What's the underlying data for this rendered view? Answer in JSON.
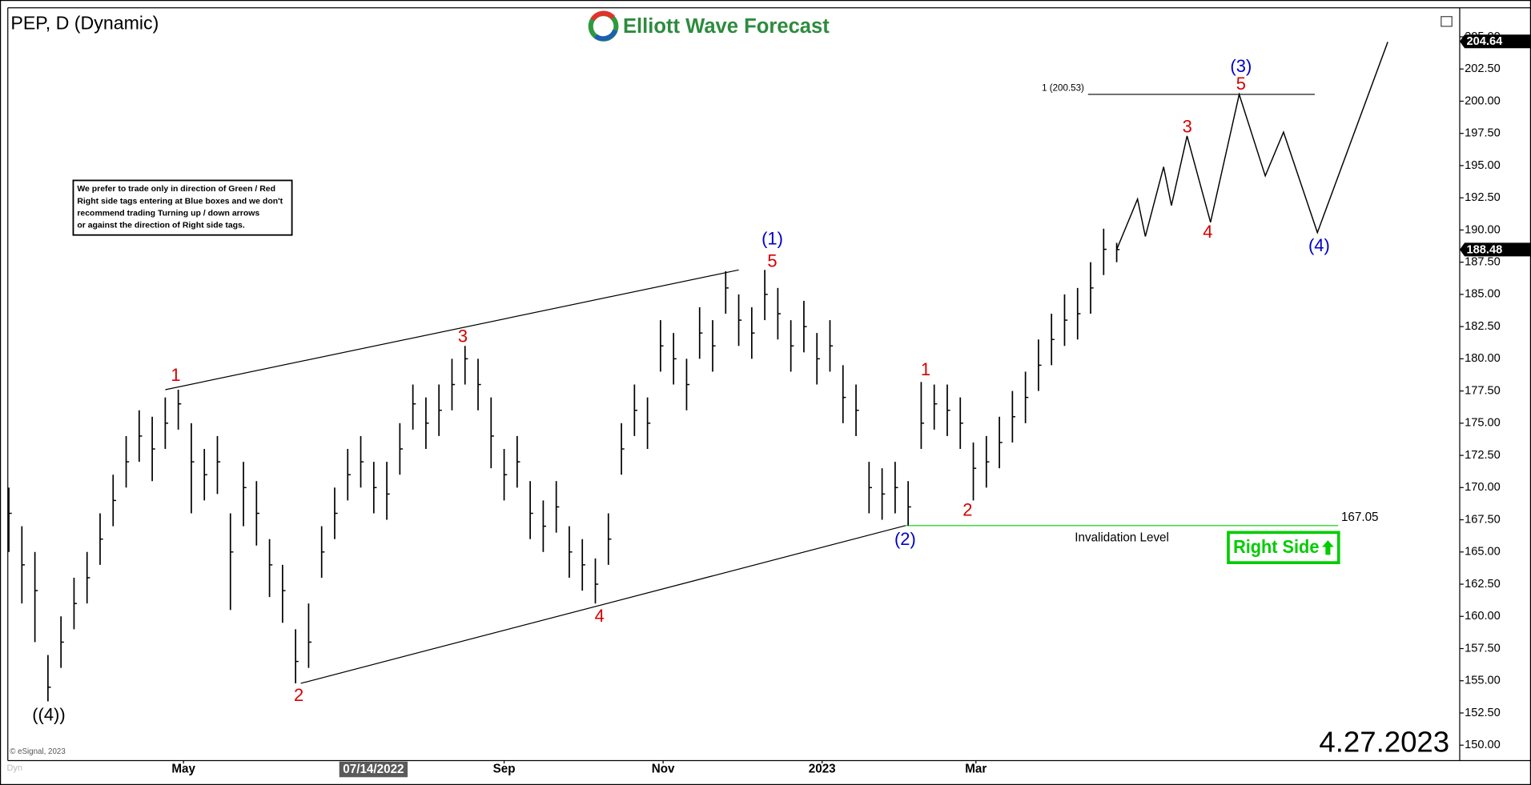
{
  "chart_data": {
    "type": "ohlc",
    "title": "PEP, D (Dynamic)",
    "brand": "Elliott Wave Forecast",
    "date_stamp": "4.27.2023",
    "copyright": "© eSignal, 2023",
    "corner_tag": "Dyn",
    "note": [
      "We prefer to trade only in direction of Green / Red",
      "Right side tags entering at Blue boxes and we don't",
      "recommend trading Turning up / down arrows",
      "or against the direction of Right side tags."
    ],
    "right_side_tag": {
      "label": "Right Side",
      "color": "#00cc00"
    },
    "x": [
      -67,
      -62,
      -57,
      -52,
      -47,
      -42,
      -37,
      -32,
      -27,
      -22,
      -17,
      -12,
      -7,
      -2,
      3,
      8,
      13,
      18,
      23,
      28,
      33,
      38,
      43,
      48,
      53,
      58,
      63,
      68,
      73,
      78,
      83,
      88,
      93,
      98,
      103,
      108,
      113,
      118,
      123,
      128,
      133,
      138,
      143,
      148,
      153,
      158,
      163,
      168,
      173,
      178,
      183,
      188,
      193,
      198,
      203,
      208,
      213,
      218,
      223,
      228,
      233,
      238,
      243,
      248,
      253,
      258,
      263,
      268,
      273,
      278,
      283,
      288,
      293,
      298,
      303,
      308,
      313,
      318,
      323,
      328,
      333,
      338,
      343,
      348,
      353,
      358
    ],
    "high": [
      170,
      167,
      165,
      157,
      160,
      163,
      165,
      168,
      171,
      174,
      176,
      175.5,
      177,
      177.6,
      175,
      173,
      174,
      168,
      172,
      170.5,
      166,
      164,
      159,
      161,
      167,
      170,
      173,
      174,
      172,
      172,
      175,
      178,
      177,
      178,
      180,
      181,
      180,
      177,
      173,
      174,
      170.5,
      169,
      170.5,
      167,
      166,
      164.5,
      168,
      175,
      178,
      177,
      183,
      182,
      180,
      184,
      183,
      186.8,
      185,
      184,
      186.9,
      185.5,
      183,
      184.5,
      182,
      183,
      179.5,
      178,
      172,
      171.5,
      172,
      170.5,
      178.2,
      178,
      178,
      177,
      173.5,
      174,
      175.5,
      177.5,
      179,
      181.5,
      183.5,
      185,
      185.5,
      187.5,
      190.1,
      189
    ],
    "low": [
      165,
      161,
      158,
      153.4,
      156,
      159,
      161,
      164,
      167,
      170,
      172,
      170.5,
      173,
      174.5,
      168,
      169,
      169.5,
      160.5,
      167,
      165.5,
      161.5,
      159.5,
      154.8,
      156,
      163,
      166,
      169,
      170,
      168,
      167.5,
      171,
      174.5,
      173,
      174,
      176,
      178,
      176,
      171.5,
      169,
      170,
      166,
      165,
      166.5,
      163,
      162,
      161,
      164,
      171,
      174,
      173,
      179,
      178,
      176,
      180,
      179,
      183.5,
      181,
      180,
      183,
      181.5,
      179,
      180.5,
      178,
      179,
      175,
      174,
      168,
      167.5,
      168,
      167.05,
      173,
      174.5,
      174,
      173,
      169,
      170,
      171.5,
      173.5,
      175,
      177.5,
      179.5,
      181,
      181.5,
      183.5,
      186.5,
      187.5
    ],
    "close": [
      168,
      164,
      162,
      154.5,
      158,
      161,
      163,
      166,
      169,
      172,
      174,
      173,
      175,
      176.5,
      172,
      171,
      172,
      165,
      170,
      168,
      164,
      162,
      156.5,
      158,
      165,
      168,
      171,
      172,
      170,
      169.5,
      173,
      176.5,
      175,
      176,
      178,
      180,
      178,
      174,
      171,
      172,
      168,
      167,
      168.5,
      165,
      164,
      162.5,
      166,
      173,
      176,
      175,
      181,
      180,
      178,
      182,
      181,
      185.5,
      183,
      182,
      185,
      183.5,
      181,
      182.5,
      180,
      181,
      177,
      176,
      170,
      169.5,
      170,
      168.5,
      175,
      176.5,
      176,
      175,
      171.5,
      172,
      173.5,
      175.5,
      177,
      179.5,
      181.5,
      183,
      183.5,
      185.5,
      188.5,
      188.48
    ],
    "bar_color": "#000000",
    "projection": {
      "x": [
        358,
        366,
        369,
        376,
        379,
        385,
        394,
        405,
        415,
        422,
        435,
        462
      ],
      "values": [
        188.48,
        192.4,
        189.5,
        194.9,
        191.9,
        197.3,
        190.6,
        200.53,
        194.2,
        197.6,
        189.8,
        204.6
      ]
    },
    "trendlines": [
      {
        "x": [
          -7,
          213
        ],
        "values": [
          177.6,
          186.9
        ]
      },
      {
        "x": [
          45,
          277
        ],
        "values": [
          154.8,
          167.05
        ]
      }
    ],
    "fib_level": {
      "label": "1 (200.53)",
      "value": 200.53,
      "x": [
        347,
        434
      ]
    },
    "invalidation": {
      "label": "Invalidation Level",
      "value": 167.05,
      "x": [
        277,
        443
      ],
      "color": "#00cc00"
    },
    "price_tags": [
      204.64,
      188.48
    ],
    "annotations": [
      {
        "text": "((4))",
        "color": "#000000"
      },
      {
        "text": "1",
        "color": "#d40000"
      },
      {
        "text": "2",
        "color": "#d40000"
      },
      {
        "text": "3",
        "color": "#d40000"
      },
      {
        "text": "4",
        "color": "#d40000"
      },
      {
        "text": "(1)",
        "color": "#0000c8"
      },
      {
        "text": "5",
        "color": "#d40000"
      },
      {
        "text": "(2)",
        "color": "#0000c8"
      },
      {
        "text": "1",
        "color": "#d40000"
      },
      {
        "text": "2",
        "color": "#d40000"
      },
      {
        "text": "3",
        "color": "#d40000"
      },
      {
        "text": "4",
        "color": "#d40000"
      },
      {
        "text": "(3)",
        "color": "#0000c8"
      },
      {
        "text": "5",
        "color": "#d40000"
      },
      {
        "text": "(4)",
        "color": "#0000c8"
      }
    ],
    "xlim": [
      -67.4,
      489.6
    ],
    "ylim": [
      148.8,
      207.1
    ],
    "xticks": [
      {
        "value": 0,
        "label": "May"
      },
      {
        "value": 123,
        "label": "Sep"
      },
      {
        "value": 184,
        "label": "Nov"
      },
      {
        "value": 245,
        "label": "2023"
      },
      {
        "value": 304,
        "label": "Mar"
      }
    ],
    "crosshair_label": {
      "value": 74,
      "label": "07/14/2022"
    },
    "yticks": [
      {
        "value": 150,
        "label": "150.00"
      },
      {
        "value": 152.5,
        "label": "152.50"
      },
      {
        "value": 155,
        "label": "155.00"
      },
      {
        "value": 157.5,
        "label": "157.50"
      },
      {
        "value": 160,
        "label": "160.00"
      },
      {
        "value": 162.5,
        "label": "162.50"
      },
      {
        "value": 165,
        "label": "165.00"
      },
      {
        "value": 167.5,
        "label": "167.50"
      },
      {
        "value": 170,
        "label": "170.00"
      },
      {
        "value": 172.5,
        "label": "172.50"
      },
      {
        "value": 175,
        "label": "175.00"
      },
      {
        "value": 177.5,
        "label": "177.50"
      },
      {
        "value": 180,
        "label": "180.00"
      },
      {
        "value": 182.5,
        "label": "182.50"
      },
      {
        "value": 185,
        "label": "185.00"
      },
      {
        "value": 187.5,
        "label": "187.50"
      },
      {
        "value": 190,
        "label": "190.00"
      },
      {
        "value": 192.5,
        "label": "192.50"
      },
      {
        "value": 195,
        "label": "195.00"
      },
      {
        "value": 197.5,
        "label": "197.50"
      },
      {
        "value": 200,
        "label": "200.00"
      },
      {
        "value": 202.5,
        "label": "202.50"
      },
      {
        "value": 205,
        "label": "205.00"
      }
    ],
    "grid": false
  }
}
